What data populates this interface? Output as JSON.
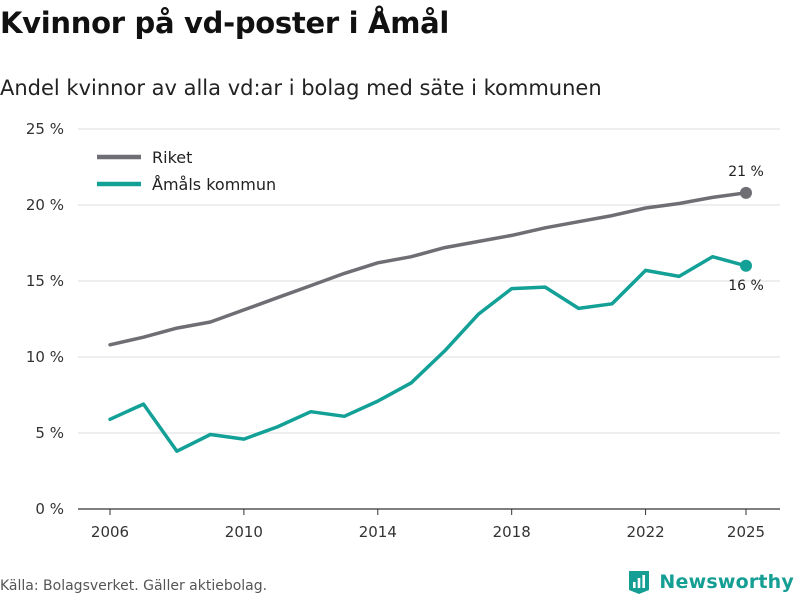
{
  "title": "Kvinnor på vd-poster i Åmål",
  "subtitle": "Andel kvinnor av alla vd:ar i bolag med säte i kommunen",
  "source": "Källa: Bolagsverket. Gäller aktiebolag.",
  "brand": {
    "name": "Newsworthy",
    "icon": "newsworthy-logo-icon",
    "color": "#159e94"
  },
  "colors": {
    "riket": "#6f6e74",
    "amal": "#13a096",
    "grid": "#dddddd",
    "axis": "#333333"
  },
  "chart_data": {
    "type": "line",
    "title": "Andel kvinnor av alla vd:ar i bolag med säte i kommunen",
    "xlabel": "",
    "ylabel": "",
    "xlim": [
      2006,
      2025
    ],
    "ylim": [
      0,
      25
    ],
    "grid": true,
    "legend_position": "top-left",
    "yticks": [
      0,
      5,
      10,
      15,
      20,
      25
    ],
    "ytick_labels": [
      "0 %",
      "5 %",
      "10 %",
      "15 %",
      "20 %",
      "25 %"
    ],
    "xticks": [
      2006,
      2010,
      2014,
      2018,
      2022,
      2025
    ],
    "xtick_labels": [
      "2006",
      "2010",
      "2014",
      "2018",
      "2022",
      "2025"
    ],
    "x": [
      2006,
      2007,
      2008,
      2009,
      2010,
      2011,
      2012,
      2013,
      2014,
      2015,
      2016,
      2017,
      2018,
      2019,
      2020,
      2021,
      2022,
      2023,
      2024,
      2025
    ],
    "series": [
      {
        "name": "Riket",
        "color": "#6f6e74",
        "values": [
          10.8,
          11.3,
          11.9,
          12.3,
          13.1,
          13.9,
          14.7,
          15.5,
          16.2,
          16.6,
          17.2,
          17.6,
          18.0,
          18.5,
          18.9,
          19.3,
          19.8,
          20.1,
          20.5,
          20.8
        ],
        "end_label": "21 %"
      },
      {
        "name": "Åmåls kommun",
        "color": "#13a096",
        "values": [
          5.9,
          6.9,
          3.8,
          4.9,
          4.6,
          5.4,
          6.4,
          6.1,
          7.1,
          8.3,
          10.4,
          12.8,
          14.5,
          14.6,
          13.2,
          13.5,
          15.7,
          15.3,
          16.6,
          16.0
        ],
        "end_label": "16 %"
      }
    ]
  }
}
